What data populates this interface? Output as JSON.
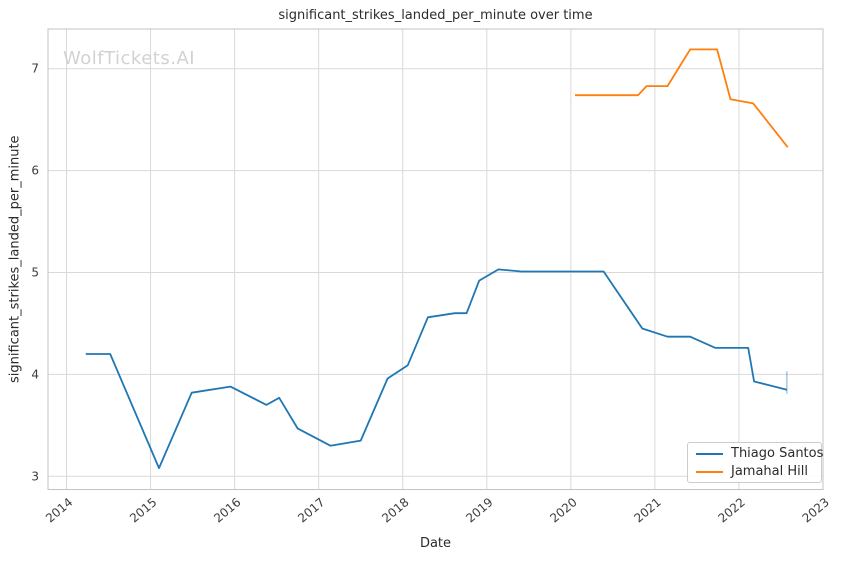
{
  "figure": {
    "title": "significant_strikes_landed_per_minute over time",
    "watermark": "WolfTickets.AI"
  },
  "colors": {
    "series_blue": "#1f77b4",
    "series_orange": "#ff7f0e",
    "grid": "#d9d9d9",
    "spine": "#c3c3c3",
    "watermark": "#d2d2d2"
  },
  "chart_data": {
    "type": "line",
    "title": "significant_strikes_landed_per_minute over time",
    "xlabel": "Date",
    "ylabel": "significant_strikes_landed_per_minute",
    "watermark": "WolfTickets.AI",
    "grid": true,
    "legend_position": "lower right",
    "xlim": [
      2013.78,
      2023.0
    ],
    "ylim": [
      2.87,
      7.39
    ],
    "xticks": [
      2014,
      2015,
      2016,
      2017,
      2018,
      2019,
      2020,
      2021,
      2022,
      2023
    ],
    "yticks": [
      3,
      4,
      5,
      6,
      7
    ],
    "series": [
      {
        "name": "Thiago Santos",
        "color": "#1f77b4",
        "points": [
          [
            2014.23,
            4.2
          ],
          [
            2014.52,
            4.2
          ],
          [
            2015.1,
            3.08
          ],
          [
            2015.49,
            3.82
          ],
          [
            2015.95,
            3.88
          ],
          [
            2016.38,
            3.7
          ],
          [
            2016.53,
            3.77
          ],
          [
            2016.75,
            3.47
          ],
          [
            2017.14,
            3.3
          ],
          [
            2017.5,
            3.35
          ],
          [
            2017.82,
            3.96
          ],
          [
            2018.06,
            4.09
          ],
          [
            2018.3,
            4.56
          ],
          [
            2018.62,
            4.6
          ],
          [
            2018.76,
            4.6
          ],
          [
            2018.91,
            4.92
          ],
          [
            2019.14,
            5.03
          ],
          [
            2019.41,
            5.01
          ],
          [
            2020.39,
            5.01
          ],
          [
            2020.85,
            4.45
          ],
          [
            2021.15,
            4.37
          ],
          [
            2021.42,
            4.37
          ],
          [
            2021.72,
            4.26
          ],
          [
            2022.11,
            4.26
          ],
          [
            2022.18,
            3.93
          ],
          [
            2022.57,
            3.85
          ]
        ],
        "end_tick": {
          "x": 2022.57,
          "y_top": 4.03,
          "y_bottom": 3.81
        }
      },
      {
        "name": "Jamahal Hill",
        "color": "#ff7f0e",
        "points": [
          [
            2020.05,
            6.74
          ],
          [
            2020.8,
            6.74
          ],
          [
            2020.9,
            6.83
          ],
          [
            2021.15,
            6.83
          ],
          [
            2021.42,
            7.19
          ],
          [
            2021.74,
            7.19
          ],
          [
            2021.9,
            6.7
          ],
          [
            2022.17,
            6.66
          ],
          [
            2022.58,
            6.23
          ]
        ]
      }
    ]
  }
}
